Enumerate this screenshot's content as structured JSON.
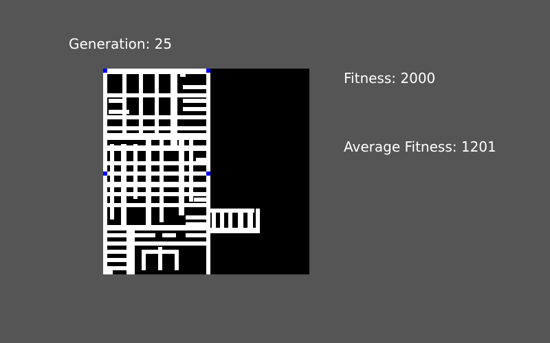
{
  "stats": {
    "generation_text": "Generation: 25",
    "fitness_text": "Fitness: 2000",
    "average_fitness_text": "Average Fitness: 1201"
  },
  "colors": {
    "background": "#555555",
    "grid_bg": "#000000",
    "path": "#ffffff",
    "marker": "#0000ff",
    "text": "#ffffff"
  }
}
